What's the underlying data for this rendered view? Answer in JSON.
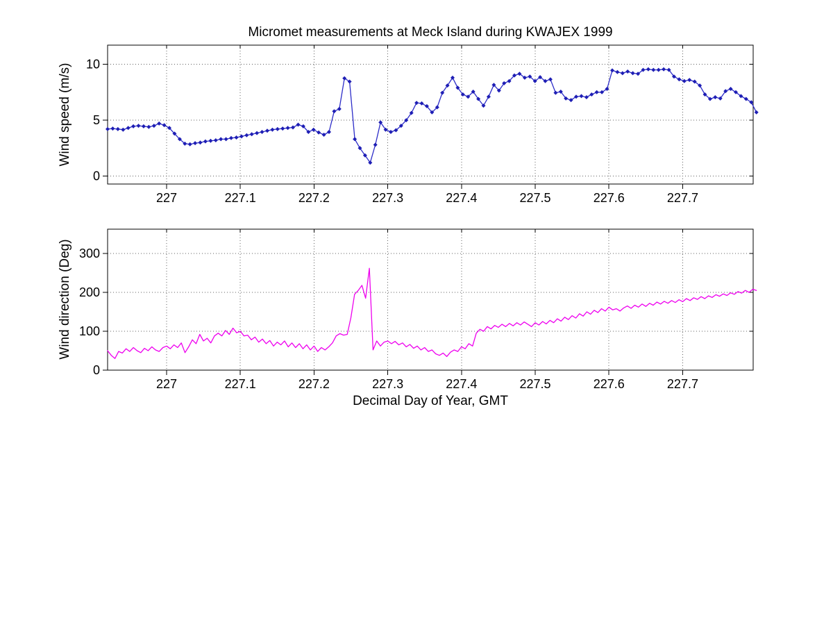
{
  "figure": {
    "title": "Micromet measurements at Meck Island during KWAJEX 1999",
    "xlabel": "Decimal Day of Year, GMT",
    "background": "#ffffff"
  },
  "chart_data": [
    {
      "type": "line",
      "name": "wind-speed",
      "ylabel": "Wind speed (m/s)",
      "line_color": "#2c2cc8",
      "marker": "diamond",
      "marker_color": "#1e1eb4",
      "grid": true,
      "legend": "none",
      "xlim": [
        226.92,
        227.7956
      ],
      "ylim": [
        -0.71,
        11.71
      ],
      "xtick_vals": [
        227,
        227.1,
        227.2,
        227.3,
        227.4,
        227.5,
        227.6,
        227.7
      ],
      "xtick_labels": [
        "227",
        "227.1",
        "227.2",
        "227.3",
        "227.4",
        "227.5",
        "227.6",
        "227.7"
      ],
      "ytick_vals": [
        0,
        5,
        10
      ],
      "ytick_labels": [
        "0",
        "5",
        "10"
      ],
      "x_start": 226.92,
      "x_step": 0.0069841,
      "values": [
        4.2,
        4.25,
        4.2,
        4.15,
        4.3,
        4.45,
        4.5,
        4.45,
        4.4,
        4.5,
        4.7,
        4.55,
        4.3,
        3.8,
        3.3,
        2.9,
        2.85,
        2.95,
        3.0,
        3.1,
        3.15,
        3.2,
        3.3,
        3.3,
        3.4,
        3.45,
        3.55,
        3.65,
        3.75,
        3.85,
        3.95,
        4.05,
        4.15,
        4.2,
        4.25,
        4.3,
        4.35,
        4.6,
        4.45,
        3.95,
        4.15,
        3.9,
        3.7,
        3.95,
        5.8,
        6.0,
        8.75,
        8.45,
        3.3,
        2.5,
        1.85,
        1.2,
        2.8,
        4.8,
        4.15,
        3.95,
        4.1,
        4.5,
        5.0,
        5.65,
        6.55,
        6.5,
        6.25,
        5.7,
        6.15,
        7.45,
        8.1,
        8.8,
        7.9,
        7.3,
        7.1,
        7.55,
        6.9,
        6.3,
        7.1,
        8.15,
        7.65,
        8.3,
        8.5,
        9.0,
        9.15,
        8.8,
        8.9,
        8.5,
        8.85,
        8.5,
        8.65,
        7.45,
        7.55,
        6.95,
        6.8,
        7.1,
        7.15,
        7.05,
        7.3,
        7.5,
        7.5,
        7.8,
        9.45,
        9.3,
        9.2,
        9.35,
        9.2,
        9.15,
        9.5,
        9.55,
        9.5,
        9.5,
        9.55,
        9.5,
        8.9,
        8.65,
        8.5,
        8.6,
        8.45,
        8.1,
        7.3,
        6.9,
        7.05,
        6.95,
        7.6,
        7.8,
        7.5,
        7.15,
        6.9,
        6.6,
        5.7
      ]
    },
    {
      "type": "line",
      "name": "wind-direction",
      "ylabel": "Wind direction (Deg)",
      "line_color": "#ee00ee",
      "marker": "none",
      "marker_color": "#ee00ee",
      "grid": true,
      "legend": "none",
      "xlim": [
        226.92,
        227.7956
      ],
      "ylim": [
        0,
        362.5
      ],
      "xtick_vals": [
        227,
        227.1,
        227.2,
        227.3,
        227.4,
        227.5,
        227.6,
        227.7
      ],
      "xtick_labels": [
        "227",
        "227.1",
        "227.2",
        "227.3",
        "227.4",
        "227.5",
        "227.6",
        "227.7"
      ],
      "ytick_vals": [
        0,
        100,
        200,
        300
      ],
      "ytick_labels": [
        "0",
        "100",
        "200",
        "300"
      ],
      "x_start": 226.92,
      "x_step": 0.005,
      "values": [
        50,
        38,
        30,
        48,
        44,
        55,
        48,
        58,
        50,
        45,
        56,
        50,
        60,
        52,
        48,
        58,
        62,
        55,
        65,
        58,
        70,
        45,
        60,
        78,
        68,
        92,
        75,
        82,
        70,
        88,
        95,
        88,
        102,
        92,
        108,
        96,
        100,
        88,
        90,
        78,
        85,
        72,
        80,
        68,
        76,
        62,
        72,
        65,
        75,
        60,
        70,
        58,
        68,
        55,
        65,
        52,
        62,
        48,
        58,
        52,
        60,
        70,
        88,
        94,
        90,
        92,
        135,
        195,
        205,
        218,
        185,
        262,
        52,
        75,
        62,
        72,
        75,
        68,
        74,
        65,
        70,
        60,
        66,
        56,
        62,
        52,
        58,
        48,
        52,
        42,
        38,
        44,
        35,
        46,
        52,
        48,
        60,
        55,
        68,
        62,
        95,
        105,
        100,
        112,
        106,
        115,
        110,
        118,
        112,
        120,
        114,
        122,
        116,
        124,
        118,
        112,
        122,
        116,
        125,
        119,
        128,
        122,
        132,
        126,
        136,
        130,
        140,
        134,
        145,
        139,
        150,
        144,
        154,
        148,
        158,
        152,
        162,
        155,
        158,
        152,
        160,
        165,
        159,
        167,
        162,
        170,
        164,
        172,
        167,
        175,
        170,
        177,
        172,
        179,
        174,
        181,
        176,
        184,
        179,
        186,
        182,
        189,
        184,
        191,
        187,
        194,
        190,
        196,
        192,
        199,
        195,
        202,
        198,
        205,
        200,
        208,
        205
      ]
    }
  ]
}
